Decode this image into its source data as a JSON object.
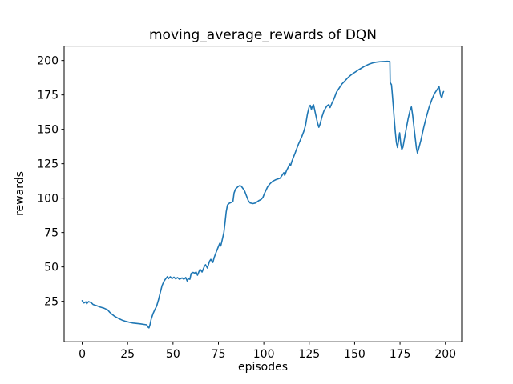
{
  "chart_data": {
    "type": "line",
    "title": "moving_average_rewards of DQN",
    "xlabel": "episodes",
    "ylabel": "rewards",
    "xlim": [
      -9.95,
      208.95
    ],
    "ylim": [
      -4.4,
      210.5
    ],
    "xticks": [
      0,
      25,
      50,
      75,
      100,
      125,
      150,
      175,
      200
    ],
    "yticks": [
      25,
      50,
      75,
      100,
      125,
      150,
      175,
      200
    ],
    "grid": false,
    "legend": null,
    "line_color": "#1f77b4",
    "series": [
      {
        "name": "moving_average_rewards",
        "points": [
          [
            0,
            25.4
          ],
          [
            1,
            23.8
          ],
          [
            2,
            24.6
          ],
          [
            2.5,
            23.3
          ],
          [
            3.5,
            24.8
          ],
          [
            5,
            24.0
          ],
          [
            6,
            22.7
          ],
          [
            8,
            21.8
          ],
          [
            10,
            20.8
          ],
          [
            12,
            20.0
          ],
          [
            14,
            18.8
          ],
          [
            15,
            17.3
          ],
          [
            16,
            16.0
          ],
          [
            18,
            14.0
          ],
          [
            20,
            12.5
          ],
          [
            22,
            11.3
          ],
          [
            24,
            10.4
          ],
          [
            26,
            9.7
          ],
          [
            28,
            9.2
          ],
          [
            30,
            8.9
          ],
          [
            32,
            8.6
          ],
          [
            34,
            8.2
          ],
          [
            35.5,
            7.9
          ],
          [
            36.3,
            6.2
          ],
          [
            36.8,
            5.7
          ],
          [
            37.3,
            8.0
          ],
          [
            38,
            12.0
          ],
          [
            39,
            16.0
          ],
          [
            40,
            19.0
          ],
          [
            41,
            21.5
          ],
          [
            42,
            26.0
          ],
          [
            43,
            31.5
          ],
          [
            44,
            36.5
          ],
          [
            45,
            39.5
          ],
          [
            46,
            41.5
          ],
          [
            47,
            43.0
          ],
          [
            47.5,
            41.5
          ],
          [
            48.5,
            42.8
          ],
          [
            49.5,
            41.5
          ],
          [
            50.5,
            42.5
          ],
          [
            51.5,
            41.3
          ],
          [
            52.5,
            42.3
          ],
          [
            53.5,
            41.0
          ],
          [
            55,
            42.0
          ],
          [
            56,
            41.0
          ],
          [
            57,
            42.3
          ],
          [
            57.8,
            39.8
          ],
          [
            58.5,
            41.5
          ],
          [
            59.3,
            41.0
          ],
          [
            60,
            45.3
          ],
          [
            61,
            46.0
          ],
          [
            62,
            45.5
          ],
          [
            62.7,
            46.3
          ],
          [
            63.5,
            44.0
          ],
          [
            64.2,
            46.3
          ],
          [
            64.9,
            48.3
          ],
          [
            66,
            46.3
          ],
          [
            67.2,
            50.2
          ],
          [
            67.9,
            51.6
          ],
          [
            68.9,
            49.2
          ],
          [
            70.1,
            54.1
          ],
          [
            70.8,
            55.5
          ],
          [
            71.9,
            53.2
          ],
          [
            72.7,
            57.0
          ],
          [
            73.8,
            60.9
          ],
          [
            74.5,
            63.2
          ],
          [
            75.7,
            67.1
          ],
          [
            76.3,
            65.2
          ],
          [
            77.1,
            69.6
          ],
          [
            78,
            75.0
          ],
          [
            78.7,
            83.0
          ],
          [
            79.3,
            90.0
          ],
          [
            80,
            95.0
          ],
          [
            81,
            96.3
          ],
          [
            82,
            96.8
          ],
          [
            83,
            97.5
          ],
          [
            83.6,
            103.7
          ],
          [
            84.4,
            106.6
          ],
          [
            85.5,
            108.0
          ],
          [
            86.5,
            109.0
          ],
          [
            87.5,
            108.8
          ],
          [
            88.5,
            107.0
          ],
          [
            89.5,
            105.0
          ],
          [
            90.5,
            101.5
          ],
          [
            91.5,
            98.0
          ],
          [
            92.5,
            96.5
          ],
          [
            94,
            96.0
          ],
          [
            95.5,
            96.5
          ],
          [
            96.5,
            97.5
          ],
          [
            97.4,
            98.3
          ],
          [
            98.5,
            99.0
          ],
          [
            99.5,
            100.5
          ],
          [
            100.4,
            103.5
          ],
          [
            102,
            108.0
          ],
          [
            103.3,
            110.3
          ],
          [
            104.8,
            112.2
          ],
          [
            106.3,
            113.2
          ],
          [
            107.5,
            113.8
          ],
          [
            109,
            114.5
          ],
          [
            110,
            116.5
          ],
          [
            111,
            118.5
          ],
          [
            111.5,
            116.5
          ],
          [
            112.5,
            120.0
          ],
          [
            113.5,
            122.5
          ],
          [
            114.2,
            124.8
          ],
          [
            114.7,
            123.5
          ],
          [
            115.5,
            127.0
          ],
          [
            117,
            132.0
          ],
          [
            118,
            135.5
          ],
          [
            119,
            139.0
          ],
          [
            120,
            142.0
          ],
          [
            121,
            145.0
          ],
          [
            122,
            148.5
          ],
          [
            123,
            153.0
          ],
          [
            124,
            161.0
          ],
          [
            125,
            166.5
          ],
          [
            125.6,
            167.5
          ],
          [
            126.2,
            164.5
          ],
          [
            126.8,
            167.0
          ],
          [
            127.4,
            167.8
          ],
          [
            128.5,
            161.0
          ],
          [
            129.5,
            155.0
          ],
          [
            130.3,
            151.5
          ],
          [
            131,
            154.0
          ],
          [
            132,
            159.0
          ],
          [
            133,
            163.0
          ],
          [
            134,
            165.5
          ],
          [
            135,
            167.3
          ],
          [
            135.8,
            168.0
          ],
          [
            136.5,
            165.8
          ],
          [
            137.5,
            169.0
          ],
          [
            138.7,
            172.3
          ],
          [
            140,
            177.0
          ],
          [
            141.5,
            180.0
          ],
          [
            143,
            183.0
          ],
          [
            144.5,
            185.0
          ],
          [
            146,
            187.2
          ],
          [
            147.5,
            189.0
          ],
          [
            149,
            190.5
          ],
          [
            150.5,
            191.8
          ],
          [
            152,
            193.1
          ],
          [
            153.5,
            194.3
          ],
          [
            155,
            195.5
          ],
          [
            156.5,
            196.5
          ],
          [
            158,
            197.4
          ],
          [
            160,
            198.3
          ],
          [
            162,
            198.8
          ],
          [
            164,
            199.1
          ],
          [
            166,
            199.3
          ],
          [
            168,
            199.4
          ],
          [
            169.4,
            199.3
          ],
          [
            169.6,
            184.0
          ],
          [
            170.3,
            182.5
          ],
          [
            170.6,
            178.0
          ],
          [
            171.2,
            168.0
          ],
          [
            171.8,
            158.0
          ],
          [
            172.4,
            148.0
          ],
          [
            173,
            140.5
          ],
          [
            173.6,
            136.8
          ],
          [
            174.2,
            142.0
          ],
          [
            174.8,
            147.5
          ],
          [
            175.4,
            139.5
          ],
          [
            176,
            135.3
          ],
          [
            176.6,
            137.0
          ],
          [
            177.5,
            143.5
          ],
          [
            178.5,
            151.0
          ],
          [
            179.5,
            158.0
          ],
          [
            180.5,
            163.5
          ],
          [
            181.3,
            166.3
          ],
          [
            182,
            160.0
          ],
          [
            183,
            148.0
          ],
          [
            184,
            136.5
          ],
          [
            184.6,
            132.8
          ],
          [
            185.3,
            136.0
          ],
          [
            186.5,
            142.0
          ],
          [
            188,
            151.0
          ],
          [
            189.5,
            159.0
          ],
          [
            191,
            166.0
          ],
          [
            192.5,
            171.5
          ],
          [
            194,
            176.0
          ],
          [
            195.5,
            179.0
          ],
          [
            196.5,
            181.0
          ],
          [
            197.3,
            175.0
          ],
          [
            198,
            172.8
          ],
          [
            198.7,
            176.5
          ],
          [
            199,
            177.5
          ]
        ]
      }
    ]
  }
}
